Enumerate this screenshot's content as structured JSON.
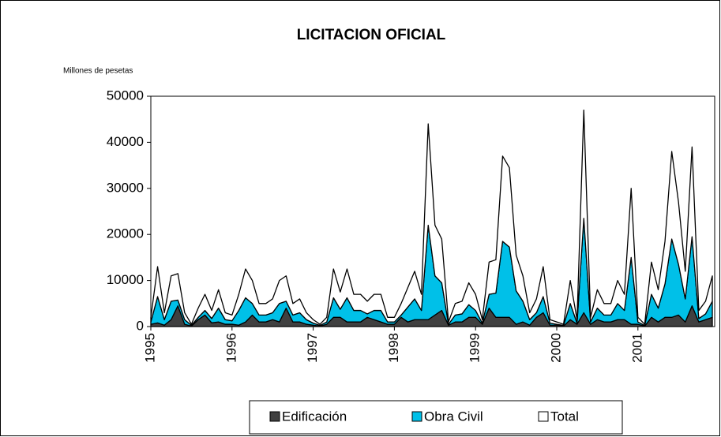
{
  "chart_data": {
    "type": "stacked_area",
    "title": "LICITACION OFICIAL",
    "y_axis_label": "Millones de pesetas",
    "categories": [
      "1995",
      null,
      null,
      null,
      null,
      null,
      null,
      null,
      null,
      null,
      null,
      null,
      "1996",
      null,
      null,
      null,
      null,
      null,
      null,
      null,
      null,
      null,
      null,
      null,
      "1997",
      null,
      null,
      null,
      null,
      null,
      null,
      null,
      null,
      null,
      null,
      null,
      "1998",
      null,
      null,
      null,
      null,
      null,
      null,
      null,
      null,
      null,
      null,
      null,
      "1999",
      null,
      null,
      null,
      null,
      null,
      null,
      null,
      null,
      null,
      null,
      null,
      "2000",
      null,
      null,
      null,
      null,
      null,
      null,
      null,
      null,
      null,
      null,
      null,
      "2001",
      null,
      null,
      null,
      null,
      null,
      null,
      null,
      null,
      null,
      null,
      null
    ],
    "series": [
      {
        "name": "Edificación",
        "color": "#404040",
        "values": [
          500,
          800,
          300,
          1500,
          4500,
          500,
          100,
          1500,
          2500,
          800,
          1000,
          500,
          500,
          300,
          1000,
          2500,
          1000,
          1000,
          1500,
          1000,
          4000,
          1000,
          1000,
          500,
          300,
          100,
          500,
          2000,
          2000,
          1000,
          1000,
          1000,
          2000,
          1500,
          1000,
          500,
          500,
          2000,
          1000,
          1500,
          1500,
          1500,
          2500,
          3500,
          300,
          1000,
          1000,
          2000,
          2000,
          500,
          4000,
          2000,
          2000,
          2000,
          500,
          1000,
          300,
          2000,
          3000,
          300,
          300,
          100,
          1500,
          500,
          3000,
          500,
          1500,
          1000,
          1000,
          1500,
          1500,
          500,
          500,
          100,
          2000,
          1000,
          2000,
          2000,
          2500,
          1000,
          4500,
          1000,
          1500,
          2000
        ]
      },
      {
        "name": "Obra Civil",
        "color": "#00c0e8",
        "values": [
          500,
          5700,
          1200,
          4000,
          1250,
          1000,
          150,
          500,
          1000,
          950,
          3000,
          1000,
          750,
          3200,
          5250,
          2500,
          1500,
          1500,
          1500,
          4000,
          1500,
          1500,
          2000,
          1000,
          450,
          150,
          500,
          4250,
          1750,
          5250,
          2500,
          2500,
          750,
          2000,
          2500,
          500,
          500,
          500,
          3250,
          4500,
          2000,
          20500,
          8500,
          6000,
          200,
          1500,
          1750,
          2750,
          1500,
          250,
          3000,
          5250,
          16500,
          15250,
          7250,
          4500,
          1200,
          1000,
          3500,
          450,
          200,
          150,
          3500,
          250,
          20500,
          500,
          2500,
          1500,
          1500,
          3500,
          2000,
          14500,
          500,
          150,
          5000,
          3000,
          7250,
          17000,
          11000,
          5000,
          15000,
          750,
          1250,
          3500
        ]
      },
      {
        "name": "Total",
        "color": "#ffffff",
        "values": [
          1000,
          6500,
          1500,
          5500,
          5750,
          1500,
          250,
          2000,
          3500,
          1750,
          4000,
          1500,
          1250,
          3500,
          6250,
          5000,
          2500,
          2500,
          3000,
          5000,
          5500,
          2500,
          3000,
          1500,
          750,
          250,
          1000,
          6250,
          3750,
          6250,
          3500,
          3500,
          2750,
          3500,
          3500,
          1000,
          1000,
          2500,
          4250,
          6000,
          3500,
          22000,
          11000,
          9500,
          500,
          2500,
          2750,
          4750,
          3500,
          750,
          7000,
          7250,
          18500,
          17250,
          7750,
          5500,
          1500,
          3000,
          6500,
          750,
          500,
          250,
          5000,
          750,
          23500,
          1000,
          4000,
          2500,
          2500,
          5000,
          3500,
          15000,
          1000,
          250,
          7000,
          4000,
          9250,
          19000,
          13500,
          6000,
          19500,
          1750,
          2750,
          5500
        ]
      }
    ],
    "ylim": [
      0,
      50000
    ],
    "yticks": [
      0,
      10000,
      20000,
      30000,
      40000,
      50000
    ],
    "legend": "bottom"
  }
}
